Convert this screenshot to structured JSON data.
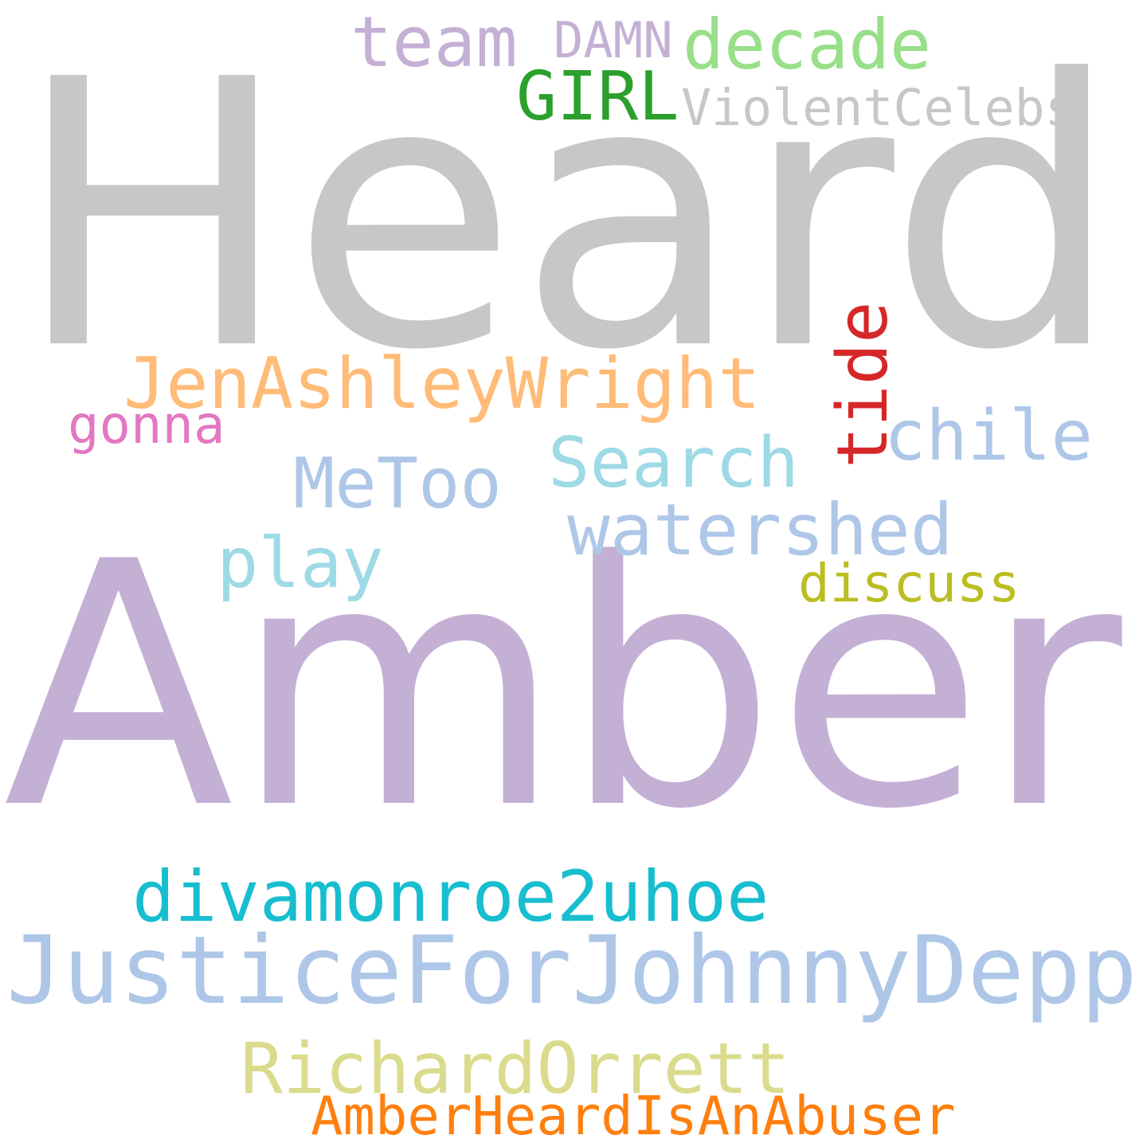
{
  "words": [
    {
      "id": "heard",
      "text": "Heard",
      "color": "#c7c7c7"
    },
    {
      "id": "amber",
      "text": "Amber",
      "color": "#c5b0d5"
    },
    {
      "id": "justice",
      "text": "JusticeForJohnnyDepp",
      "color": "#aec7e8"
    },
    {
      "id": "divamonroe",
      "text": "divamonroe2uhoe",
      "color": "#17becf"
    },
    {
      "id": "richard",
      "text": "RichardOrrett",
      "color": "#dbdb8d"
    },
    {
      "id": "amberabuser",
      "text": "AmberHeardIsAnAbuser",
      "color": "#ff7f0e"
    },
    {
      "id": "jenashley",
      "text": "JenAshleyWright",
      "color": "#ffbb78"
    },
    {
      "id": "watershed",
      "text": "watershed",
      "color": "#aec7e8"
    },
    {
      "id": "search",
      "text": "Search",
      "color": "#9edae5"
    },
    {
      "id": "metoo",
      "text": "MeToo",
      "color": "#aec7e8"
    },
    {
      "id": "chile",
      "text": "chile",
      "color": "#aec7e8"
    },
    {
      "id": "play",
      "text": "play",
      "color": "#9edae5"
    },
    {
      "id": "tide",
      "text": "tide",
      "color": "#d62728"
    },
    {
      "id": "decade",
      "text": "decade",
      "color": "#98df8a"
    },
    {
      "id": "team",
      "text": "team",
      "color": "#c5b0d5"
    },
    {
      "id": "girl",
      "text": "GIRL",
      "color": "#2ca02c"
    },
    {
      "id": "violentcelebs",
      "text": "ViolentCelebs",
      "color": "#c7c7c7"
    },
    {
      "id": "damn",
      "text": "DAMN",
      "color": "#c5b0d5"
    },
    {
      "id": "gonna",
      "text": "gonna",
      "color": "#e377c2"
    },
    {
      "id": "discuss",
      "text": "discuss",
      "color": "#bcbd22"
    }
  ]
}
